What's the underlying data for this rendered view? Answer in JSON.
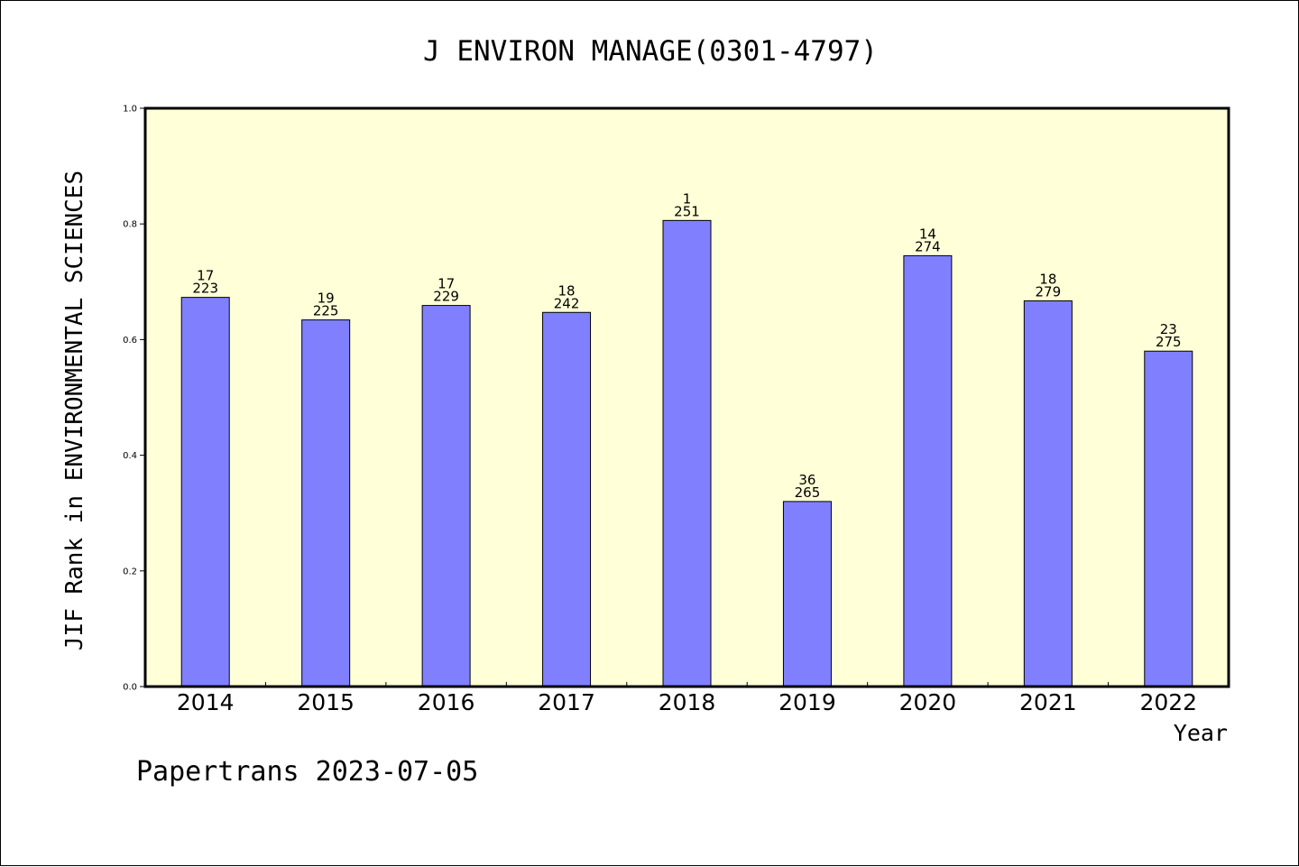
{
  "footer": {
    "text": "Papertrans 2023-07-05"
  },
  "colors": {
    "plot_background": "#ffffd8",
    "bar_fill": "#8080ff",
    "bar_stroke": "#000000",
    "axis": "#000000"
  },
  "chart_data": {
    "type": "bar",
    "title": "J ENVIRON MANAGE(0301-4797)",
    "xlabel": "Year",
    "ylabel": "JIF Rank in ENVIRONMENTAL SCIENCES",
    "ylim": [
      0,
      1.0
    ],
    "yticks": [
      "0.0",
      "0.2",
      "0.4",
      "0.6",
      "0.8",
      "1.0"
    ],
    "grid": false,
    "categories": [
      "2014",
      "2015",
      "2016",
      "2017",
      "2018",
      "2019",
      "2020",
      "2021",
      "2022"
    ],
    "values": [
      0.673,
      0.634,
      0.659,
      0.647,
      0.806,
      0.32,
      0.745,
      0.667,
      0.58
    ],
    "rank": [
      "17",
      "19",
      "17",
      "18",
      "1",
      "36",
      "14",
      "18",
      "23"
    ],
    "total": [
      "223",
      "225",
      "229",
      "242",
      "251",
      "265",
      "274",
      "279",
      "275"
    ]
  }
}
